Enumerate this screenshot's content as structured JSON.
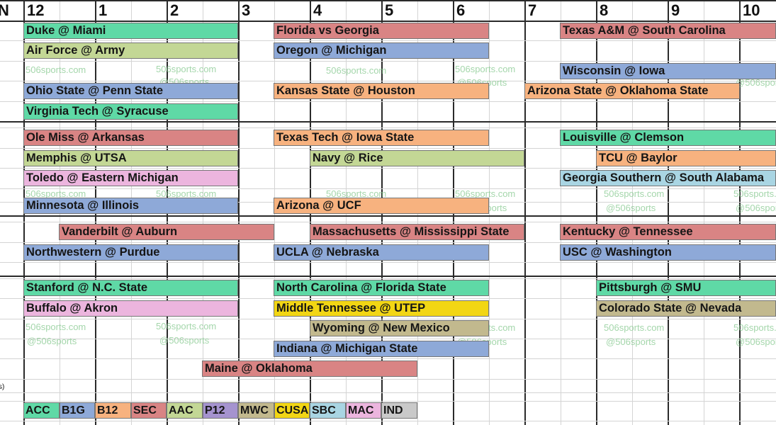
{
  "header": {
    "partial_left": "N",
    "hours": [
      "12",
      "1",
      "2",
      "3",
      "4",
      "5",
      "6",
      "7",
      "8",
      "9",
      "10"
    ]
  },
  "colors": {
    "ACC": "#5fd9a6",
    "B1G": "#8ea9d8",
    "B12": "#f7b27f",
    "SEC": "#d98484",
    "AAC": "#c3d795",
    "P12": "#a593cf",
    "MWC": "#c2b98e",
    "CUSA": "#f2d614",
    "SBC": "#a9d5e3",
    "MAC": "#ecb5de",
    "IND": "#c9c9c9"
  },
  "games": [
    {
      "matchup": "Duke @ Miami",
      "conf": "ACC"
    },
    {
      "matchup": "Florida vs Georgia",
      "conf": "SEC"
    },
    {
      "matchup": "Texas A&M @ South Carolina",
      "conf": "SEC"
    },
    {
      "matchup": "Air Force @ Army",
      "conf": "AAC"
    },
    {
      "matchup": "Oregon @ Michigan",
      "conf": "B1G"
    },
    {
      "matchup": "Wisconsin @ Iowa",
      "conf": "B1G"
    },
    {
      "matchup": "Ohio State @ Penn State",
      "conf": "B1G"
    },
    {
      "matchup": "Kansas State @ Houston",
      "conf": "B12"
    },
    {
      "matchup": "Arizona State @ Oklahoma State",
      "conf": "B12"
    },
    {
      "matchup": "Virginia Tech @ Syracuse",
      "conf": "ACC"
    },
    {
      "matchup": "Ole Miss @ Arkansas",
      "conf": "SEC"
    },
    {
      "matchup": "Texas Tech @ Iowa State",
      "conf": "B12"
    },
    {
      "matchup": "Louisville @ Clemson",
      "conf": "ACC"
    },
    {
      "matchup": "Memphis @ UTSA",
      "conf": "AAC"
    },
    {
      "matchup": "Navy @ Rice",
      "conf": "AAC"
    },
    {
      "matchup": "TCU @ Baylor",
      "conf": "B12"
    },
    {
      "matchup": "Toledo @ Eastern Michigan",
      "conf": "MAC"
    },
    {
      "matchup": "Georgia Southern @ South Alabama",
      "conf": "SBC"
    },
    {
      "matchup": "Minnesota @ Illinois",
      "conf": "B1G"
    },
    {
      "matchup": "Arizona @ UCF",
      "conf": "B12"
    },
    {
      "matchup": "Vanderbilt @ Auburn",
      "conf": "SEC"
    },
    {
      "matchup": "Massachusetts @ Mississippi State",
      "conf": "SEC"
    },
    {
      "matchup": "Kentucky @ Tennessee",
      "conf": "SEC"
    },
    {
      "matchup": "Northwestern @ Purdue",
      "conf": "B1G"
    },
    {
      "matchup": "UCLA @ Nebraska",
      "conf": "B1G"
    },
    {
      "matchup": "USC @ Washington",
      "conf": "B1G"
    },
    {
      "matchup": "Stanford @ N.C. State",
      "conf": "ACC"
    },
    {
      "matchup": "North Carolina @ Florida State",
      "conf": "ACC"
    },
    {
      "matchup": "Pittsburgh @ SMU",
      "conf": "ACC"
    },
    {
      "matchup": "Buffalo @ Akron",
      "conf": "MAC"
    },
    {
      "matchup": "Middle Tennessee @ UTEP",
      "conf": "CUSA"
    },
    {
      "matchup": "Colorado State @ Nevada",
      "conf": "MWC"
    },
    {
      "matchup": "Wyoming @ New Mexico",
      "conf": "MWC"
    },
    {
      "matchup": "Indiana @ Michigan State",
      "conf": "B1G"
    },
    {
      "matchup": "Maine @ Oklahoma",
      "conf": "SEC"
    }
  ],
  "watermark": {
    "line1": "506sports.com",
    "line2": "@506sports"
  },
  "legend_label_partial": "s)",
  "legend": [
    "ACC",
    "B1G",
    "B12",
    "SEC",
    "AAC",
    "P12",
    "MWC",
    "CUSA",
    "SBC",
    "MAC",
    "IND"
  ]
}
